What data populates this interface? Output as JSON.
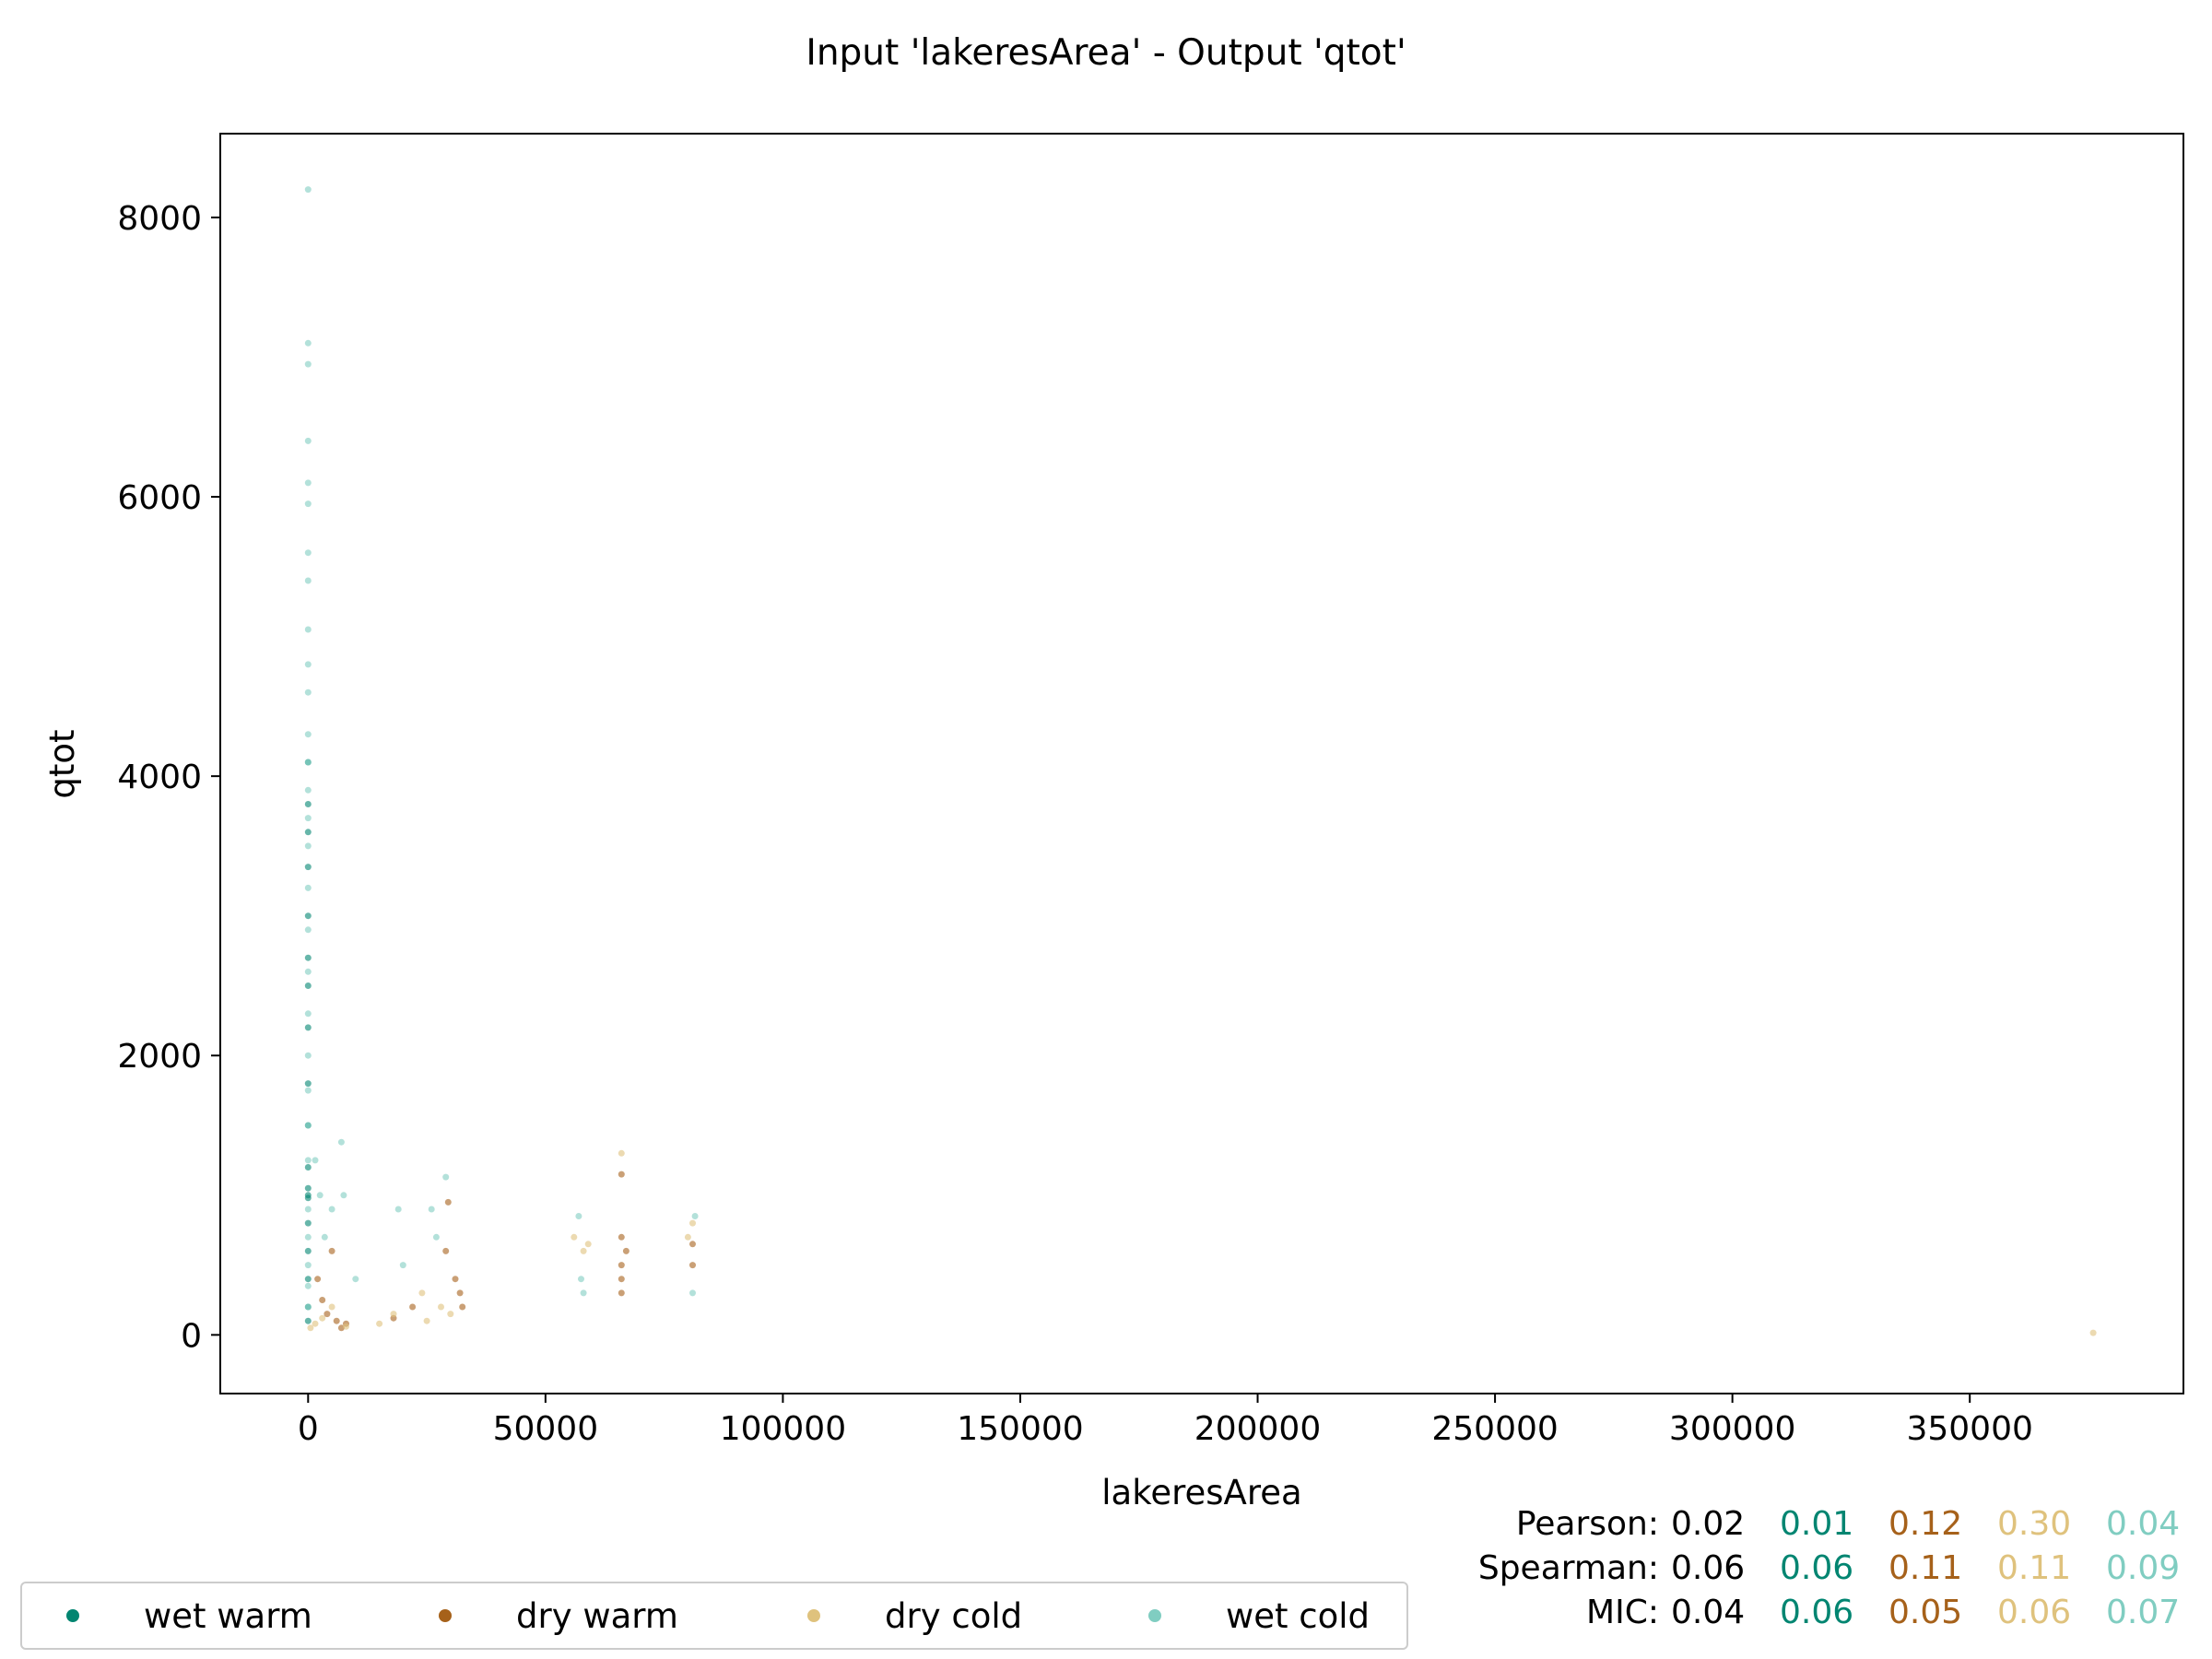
{
  "chart_data": {
    "type": "scatter",
    "title": "Input 'lakeresArea' - Output 'qtot'",
    "xlabel": "lakeresArea",
    "ylabel": "qtot",
    "xlim": [
      -18500,
      395000
    ],
    "ylim": [
      -420,
      8600
    ],
    "xticks": [
      0,
      50000,
      100000,
      150000,
      200000,
      250000,
      300000,
      350000
    ],
    "xtick_labels": [
      "0",
      "50000",
      "100000",
      "150000",
      "200000",
      "250000",
      "300000",
      "350000"
    ],
    "yticks": [
      0,
      2000,
      4000,
      6000,
      8000
    ],
    "ytick_labels": [
      "0",
      "2000",
      "4000",
      "6000",
      "8000"
    ],
    "grid": false,
    "legend_position": "bottom-left",
    "series": [
      {
        "name": "wet warm",
        "color": "#018571",
        "points": [
          [
            0,
            1000
          ],
          [
            0,
            1050
          ],
          [
            0,
            980
          ],
          [
            0,
            2500
          ],
          [
            0,
            3000
          ],
          [
            0,
            3350
          ],
          [
            0,
            2700
          ],
          [
            0,
            2200
          ],
          [
            0,
            1800
          ],
          [
            0,
            1500
          ],
          [
            0,
            1200
          ],
          [
            0,
            800
          ],
          [
            0,
            600
          ],
          [
            0,
            400
          ],
          [
            0,
            200
          ],
          [
            0,
            100
          ],
          [
            0,
            4100
          ],
          [
            0,
            3800
          ],
          [
            0,
            3600
          ]
        ]
      },
      {
        "name": "dry warm",
        "color": "#a6611a",
        "points": [
          [
            2000,
            400
          ],
          [
            3000,
            250
          ],
          [
            4000,
            150
          ],
          [
            5000,
            600
          ],
          [
            6000,
            100
          ],
          [
            7000,
            50
          ],
          [
            8000,
            80
          ],
          [
            18000,
            120
          ],
          [
            22000,
            200
          ],
          [
            29000,
            600
          ],
          [
            29500,
            950
          ],
          [
            31000,
            400
          ],
          [
            32000,
            300
          ],
          [
            32500,
            200
          ],
          [
            66000,
            1150
          ],
          [
            66000,
            700
          ],
          [
            66000,
            500
          ],
          [
            66000,
            400
          ],
          [
            66000,
            300
          ],
          [
            67000,
            600
          ],
          [
            81000,
            650
          ],
          [
            81000,
            500
          ]
        ]
      },
      {
        "name": "dry cold",
        "color": "#dfc27d",
        "points": [
          [
            500,
            50
          ],
          [
            1500,
            80
          ],
          [
            3000,
            120
          ],
          [
            5000,
            200
          ],
          [
            8000,
            60
          ],
          [
            15000,
            80
          ],
          [
            18000,
            150
          ],
          [
            24000,
            300
          ],
          [
            25000,
            100
          ],
          [
            28000,
            200
          ],
          [
            30000,
            150
          ],
          [
            56000,
            700
          ],
          [
            58000,
            600
          ],
          [
            59000,
            650
          ],
          [
            66000,
            1300
          ],
          [
            80000,
            700
          ],
          [
            81000,
            800
          ],
          [
            376000,
            15
          ]
        ]
      },
      {
        "name": "wet cold",
        "color": "#80cdc1",
        "points": [
          [
            0,
            8200
          ],
          [
            0,
            7100
          ],
          [
            0,
            6950
          ],
          [
            0,
            6400
          ],
          [
            0,
            6100
          ],
          [
            0,
            5950
          ],
          [
            0,
            5600
          ],
          [
            0,
            5400
          ],
          [
            0,
            5050
          ],
          [
            0,
            4800
          ],
          [
            0,
            4600
          ],
          [
            0,
            4300
          ],
          [
            0,
            4100
          ],
          [
            0,
            3900
          ],
          [
            0,
            3700
          ],
          [
            0,
            3500
          ],
          [
            0,
            3200
          ],
          [
            0,
            2900
          ],
          [
            0,
            2600
          ],
          [
            0,
            2300
          ],
          [
            0,
            2000
          ],
          [
            0,
            1750
          ],
          [
            0,
            1500
          ],
          [
            0,
            1250
          ],
          [
            0,
            900
          ],
          [
            0,
            700
          ],
          [
            0,
            500
          ],
          [
            0,
            350
          ],
          [
            0,
            200
          ],
          [
            1500,
            1250
          ],
          [
            2500,
            1000
          ],
          [
            3500,
            700
          ],
          [
            5000,
            900
          ],
          [
            7000,
            1380
          ],
          [
            7500,
            1000
          ],
          [
            10000,
            400
          ],
          [
            19000,
            900
          ],
          [
            20000,
            500
          ],
          [
            26000,
            900
          ],
          [
            27000,
            700
          ],
          [
            29000,
            1130
          ],
          [
            57000,
            850
          ],
          [
            57500,
            400
          ],
          [
            58000,
            300
          ],
          [
            81500,
            850
          ],
          [
            81000,
            300
          ]
        ]
      }
    ],
    "stats": {
      "rows": [
        {
          "label": "Pearson:",
          "overall": "0.02",
          "values": [
            "0.01",
            "0.12",
            "0.30",
            "0.04"
          ]
        },
        {
          "label": "Spearman:",
          "overall": "0.06",
          "values": [
            "0.06",
            "0.11",
            "0.11",
            "0.09"
          ]
        },
        {
          "label": "MIC:",
          "overall": "0.04",
          "values": [
            "0.06",
            "0.05",
            "0.06",
            "0.07"
          ]
        }
      ]
    }
  }
}
